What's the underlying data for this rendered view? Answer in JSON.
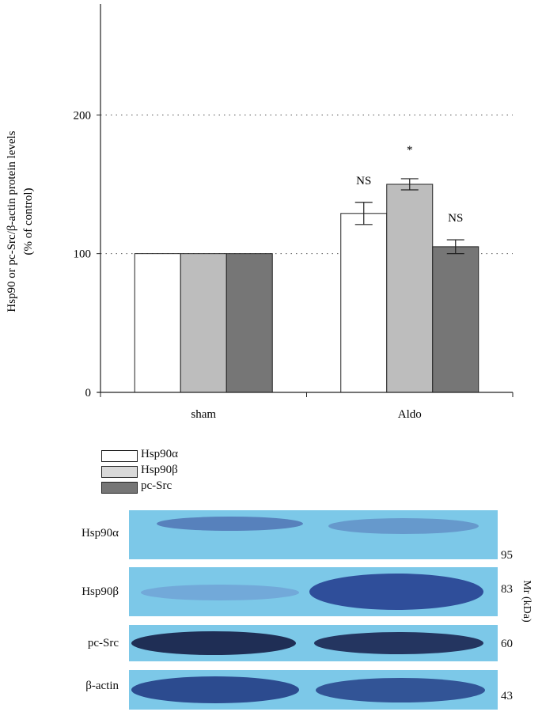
{
  "chart_data": {
    "type": "bar",
    "ylabel": "Hsp90 or pc-Src/β-actin protein levels",
    "ylabel2": "(% of control)",
    "yticks": [
      0,
      100,
      200
    ],
    "ylim": [
      0,
      280
    ],
    "gridlines": [
      100,
      200
    ],
    "categories": [
      "sham",
      "Aldo"
    ],
    "series": [
      {
        "name": "Hsp90α",
        "color": "#ffffff",
        "values": [
          100,
          129
        ],
        "errors": [
          0,
          8
        ],
        "annotations": [
          "",
          "NS"
        ]
      },
      {
        "name": "Hsp90β",
        "color": "#bdbdbd",
        "values": [
          100,
          150
        ],
        "errors": [
          0,
          4
        ],
        "annotations": [
          "",
          "*"
        ]
      },
      {
        "name": "pc-Src",
        "color": "#767676",
        "values": [
          100,
          105
        ],
        "errors": [
          0,
          5
        ],
        "annotations": [
          "",
          "NS"
        ]
      }
    ]
  },
  "blot": {
    "unit_label": "Mr (kDa)",
    "rows": [
      {
        "label": "Hsp90α",
        "kda": "95"
      },
      {
        "label": "Hsp90β",
        "kda": "83"
      },
      {
        "label": "pc-Src",
        "kda": "60"
      },
      {
        "label": "β-actin",
        "kda": "43"
      }
    ]
  }
}
